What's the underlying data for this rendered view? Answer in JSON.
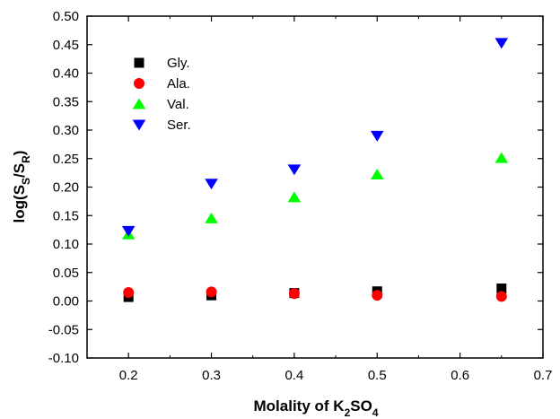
{
  "chart_data": {
    "type": "scatter",
    "title": "",
    "xlabel": {
      "main": "Molality of K",
      "sub1": "2",
      "mid": "SO",
      "sub2": "4"
    },
    "ylabel": {
      "prefix": "log(S",
      "sub1": "S",
      "mid": "/S",
      "sub2": "R",
      "suffix": ")"
    },
    "xlim": [
      0.15,
      0.7
    ],
    "ylim": [
      -0.1,
      0.5
    ],
    "x_ticks": [
      0.2,
      0.3,
      0.4,
      0.5,
      0.6,
      0.7
    ],
    "y_ticks": [
      -0.1,
      -0.05,
      0.0,
      0.05,
      0.1,
      0.15,
      0.2,
      0.25,
      0.3,
      0.35,
      0.4,
      0.45,
      0.5
    ],
    "x_tick_labels": [
      "0.2",
      "0.3",
      "0.4",
      "0.5",
      "0.6",
      "0.7"
    ],
    "y_tick_labels": [
      "-0.10",
      "-0.05",
      "0.00",
      "0.05",
      "0.10",
      "0.15",
      "0.20",
      "0.25",
      "0.30",
      "0.35",
      "0.40",
      "0.45",
      "0.50"
    ],
    "grid": false,
    "legend_position": "top-left",
    "x": [
      0.2,
      0.3,
      0.4,
      0.5,
      0.65
    ],
    "series": [
      {
        "name": "Gly.",
        "marker": "square",
        "color": "#000000",
        "values": [
          0.007,
          0.01,
          0.014,
          0.017,
          0.022
        ]
      },
      {
        "name": "Ala.",
        "marker": "circle",
        "color": "#ff0000",
        "values": [
          0.015,
          0.016,
          0.013,
          0.01,
          0.008
        ]
      },
      {
        "name": "Val.",
        "marker": "triangle-up",
        "color": "#00ff00",
        "values": [
          0.117,
          0.145,
          0.182,
          0.222,
          0.251
        ]
      },
      {
        "name": "Ser.",
        "marker": "triangle-down",
        "color": "#0000ff",
        "values": [
          0.123,
          0.206,
          0.231,
          0.29,
          0.453
        ]
      }
    ]
  }
}
